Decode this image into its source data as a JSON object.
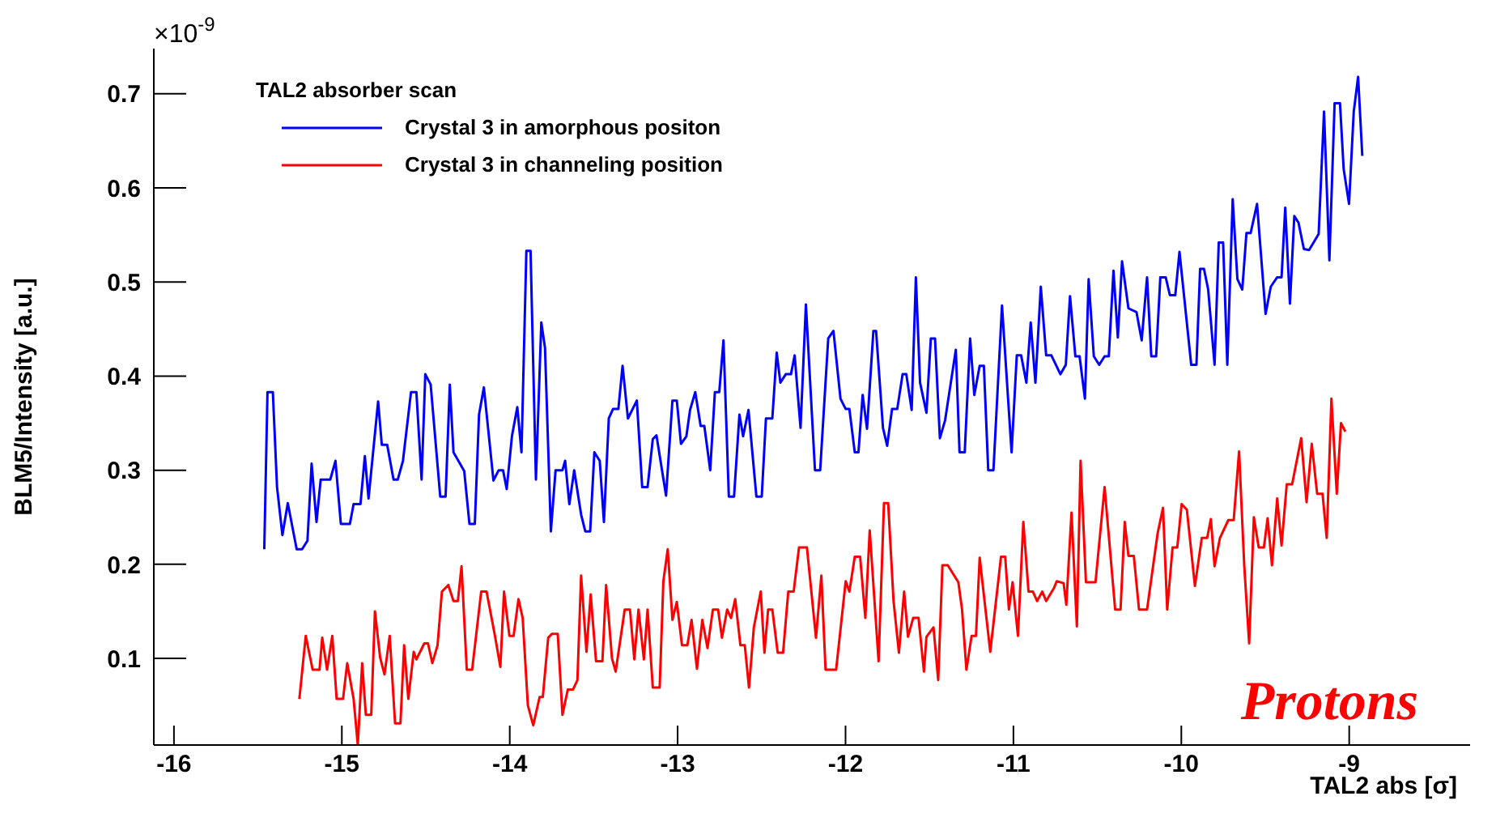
{
  "chart_data": {
    "type": "line",
    "xlabel": "TAL2 abs [σ]",
    "ylabel": "BLM5/Intensity [a.u.]",
    "legend_title": "TAL2 absorber scan",
    "legend": "top left",
    "grid": false,
    "marker": "none",
    "line_style": "solid",
    "xlim": [
      -16.12,
      -8.28
    ],
    "xticks": [
      -16,
      -15,
      -14,
      -13,
      -12,
      -11,
      -10,
      -9
    ],
    "ylim": [
      0.008,
      0.748
    ],
    "yticks": [
      0.1,
      0.2,
      0.3,
      0.4,
      0.5,
      0.6,
      0.7
    ],
    "annotations": [
      "×10$^{-9}$",
      "Protons"
    ],
    "series": [
      {
        "name": "Crystal 3 in amorphous positon",
        "color": "#0000ff",
        "x": [
          -15.462,
          -15.443,
          -15.411,
          -15.386,
          -15.354,
          -15.322,
          -15.269,
          -15.237,
          -15.205,
          -15.18,
          -15.151,
          -15.126,
          -15.069,
          -15.038,
          -15.006,
          -14.952,
          -14.93,
          -14.889,
          -14.863,
          -14.841,
          -14.784,
          -14.762,
          -14.73,
          -14.692,
          -14.667,
          -14.636,
          -14.588,
          -14.556,
          -14.525,
          -14.503,
          -14.471,
          -14.414,
          -14.382,
          -14.357,
          -14.335,
          -14.271,
          -14.24,
          -14.208,
          -14.183,
          -14.154,
          -14.097,
          -14.066,
          -14.04,
          -14.018,
          -13.987,
          -13.955,
          -13.93,
          -13.901,
          -13.876,
          -13.844,
          -13.812,
          -13.79,
          -13.755,
          -13.727,
          -13.686,
          -13.67,
          -13.645,
          -13.616,
          -13.575,
          -13.55,
          -13.521,
          -13.496,
          -13.464,
          -13.439,
          -13.41,
          -13.385,
          -13.353,
          -13.328,
          -13.296,
          -13.243,
          -13.211,
          -13.179,
          -13.148,
          -13.126,
          -13.069,
          -13.031,
          -13.005,
          -12.98,
          -12.948,
          -12.926,
          -12.895,
          -12.863,
          -12.841,
          -12.806,
          -12.778,
          -12.752,
          -12.727,
          -12.695,
          -12.664,
          -12.632,
          -12.61,
          -12.578,
          -12.531,
          -12.499,
          -12.474,
          -12.436,
          -12.41,
          -12.388,
          -12.356,
          -12.325,
          -12.303,
          -12.268,
          -12.236,
          -12.182,
          -12.151,
          -12.103,
          -12.072,
          -12.03,
          -11.999,
          -11.977,
          -11.945,
          -11.923,
          -11.898,
          -11.872,
          -11.834,
          -11.818,
          -11.777,
          -11.752,
          -11.723,
          -11.692,
          -11.66,
          -11.638,
          -11.606,
          -11.581,
          -11.556,
          -11.518,
          -11.492,
          -11.467,
          -11.438,
          -11.407,
          -11.343,
          -11.321,
          -11.29,
          -11.258,
          -11.233,
          -11.201,
          -11.176,
          -11.15,
          -11.119,
          -11.068,
          -11.011,
          -10.98,
          -10.954,
          -10.923,
          -10.897,
          -10.869,
          -10.837,
          -10.805,
          -10.774,
          -10.72,
          -10.688,
          -10.663,
          -10.631,
          -10.606,
          -10.574,
          -10.552,
          -10.521,
          -10.489,
          -10.457,
          -10.432,
          -10.404,
          -10.378,
          -10.353,
          -10.315,
          -10.267,
          -10.236,
          -10.204,
          -10.179,
          -10.15,
          -10.125,
          -10.093,
          -10.068,
          -10.036,
          -10.011,
          -9.941,
          -9.91,
          -9.888,
          -9.865,
          -9.84,
          -9.802,
          -9.777,
          -9.751,
          -9.726,
          -9.694,
          -9.666,
          -9.637,
          -9.612,
          -9.587,
          -9.549,
          -9.498,
          -9.467,
          -9.429,
          -9.403,
          -9.381,
          -9.353,
          -9.327,
          -9.302,
          -9.27,
          -9.239,
          -9.182,
          -9.15,
          -9.118,
          -9.087,
          -9.055,
          -9.033,
          -9.001,
          -8.973,
          -8.947,
          -8.922
        ],
        "values": [
          0.216,
          0.383,
          0.383,
          0.282,
          0.231,
          0.265,
          0.216,
          0.216,
          0.225,
          0.307,
          0.245,
          0.29,
          0.29,
          0.31,
          0.243,
          0.243,
          0.264,
          0.264,
          0.315,
          0.27,
          0.373,
          0.327,
          0.327,
          0.29,
          0.29,
          0.31,
          0.383,
          0.383,
          0.29,
          0.402,
          0.391,
          0.272,
          0.272,
          0.391,
          0.319,
          0.299,
          0.243,
          0.243,
          0.359,
          0.388,
          0.289,
          0.3,
          0.3,
          0.28,
          0.336,
          0.367,
          0.319,
          0.533,
          0.533,
          0.29,
          0.457,
          0.43,
          0.235,
          0.3,
          0.3,
          0.31,
          0.264,
          0.3,
          0.253,
          0.235,
          0.235,
          0.319,
          0.31,
          0.245,
          0.355,
          0.365,
          0.365,
          0.411,
          0.355,
          0.374,
          0.282,
          0.282,
          0.333,
          0.337,
          0.273,
          0.374,
          0.374,
          0.328,
          0.336,
          0.364,
          0.383,
          0.347,
          0.347,
          0.3,
          0.383,
          0.383,
          0.438,
          0.272,
          0.272,
          0.359,
          0.336,
          0.364,
          0.272,
          0.272,
          0.355,
          0.355,
          0.425,
          0.393,
          0.402,
          0.402,
          0.422,
          0.345,
          0.476,
          0.3,
          0.3,
          0.44,
          0.448,
          0.376,
          0.365,
          0.365,
          0.319,
          0.319,
          0.38,
          0.344,
          0.448,
          0.448,
          0.345,
          0.326,
          0.365,
          0.365,
          0.402,
          0.402,
          0.364,
          0.505,
          0.393,
          0.361,
          0.44,
          0.44,
          0.334,
          0.353,
          0.428,
          0.319,
          0.319,
          0.44,
          0.38,
          0.411,
          0.411,
          0.3,
          0.3,
          0.475,
          0.319,
          0.422,
          0.422,
          0.393,
          0.457,
          0.393,
          0.495,
          0.422,
          0.422,
          0.402,
          0.412,
          0.485,
          0.421,
          0.421,
          0.376,
          0.503,
          0.421,
          0.412,
          0.421,
          0.421,
          0.512,
          0.441,
          0.522,
          0.472,
          0.468,
          0.438,
          0.505,
          0.421,
          0.421,
          0.505,
          0.505,
          0.486,
          0.486,
          0.532,
          0.412,
          0.412,
          0.514,
          0.514,
          0.492,
          0.412,
          0.542,
          0.542,
          0.412,
          0.588,
          0.503,
          0.492,
          0.552,
          0.552,
          0.583,
          0.466,
          0.495,
          0.505,
          0.505,
          0.579,
          0.477,
          0.57,
          0.563,
          0.535,
          0.534,
          0.551,
          0.681,
          0.523,
          0.69,
          0.69,
          0.62,
          0.583,
          0.681,
          0.718,
          0.634
        ]
      },
      {
        "name": "Crystal 3 in channeling position",
        "color": "#ff0000",
        "x": [
          -15.253,
          -15.215,
          -15.174,
          -15.133,
          -15.117,
          -15.088,
          -15.057,
          -15.031,
          -14.993,
          -14.968,
          -14.93,
          -14.905,
          -14.879,
          -14.857,
          -14.825,
          -14.803,
          -14.772,
          -14.746,
          -14.715,
          -14.683,
          -14.651,
          -14.629,
          -14.604,
          -14.572,
          -14.556,
          -14.509,
          -14.487,
          -14.461,
          -14.43,
          -14.404,
          -14.366,
          -14.335,
          -14.309,
          -14.287,
          -14.256,
          -14.224,
          -14.17,
          -14.138,
          -14.088,
          -14.056,
          -14.034,
          -14.002,
          -13.977,
          -13.948,
          -13.923,
          -13.892,
          -13.86,
          -13.822,
          -13.803,
          -13.771,
          -13.749,
          -13.714,
          -13.686,
          -13.654,
          -13.623,
          -13.597,
          -13.575,
          -13.543,
          -13.518,
          -13.486,
          -13.448,
          -13.426,
          -13.391,
          -13.369,
          -13.315,
          -13.284,
          -13.258,
          -13.233,
          -13.201,
          -13.179,
          -13.148,
          -13.107,
          -13.085,
          -13.059,
          -13.031,
          -13.005,
          -12.974,
          -12.942,
          -12.917,
          -12.885,
          -12.853,
          -12.822,
          -12.79,
          -12.759,
          -12.736,
          -12.705,
          -12.682,
          -12.657,
          -12.626,
          -12.6,
          -12.575,
          -12.546,
          -12.505,
          -12.483,
          -12.461,
          -12.436,
          -12.404,
          -12.372,
          -12.341,
          -12.309,
          -12.277,
          -12.23,
          -12.176,
          -12.144,
          -12.119,
          -12.056,
          -11.999,
          -11.977,
          -11.945,
          -11.913,
          -11.882,
          -11.856,
          -11.803,
          -11.771,
          -11.746,
          -11.714,
          -11.682,
          -11.651,
          -11.628,
          -11.597,
          -11.565,
          -11.533,
          -11.518,
          -11.476,
          -11.448,
          -11.423,
          -11.391,
          -11.328,
          -11.306,
          -11.28,
          -11.249,
          -11.223,
          -11.201,
          -11.138,
          -11.074,
          -11.049,
          -11.027,
          -11.005,
          -10.973,
          -10.941,
          -10.91,
          -10.884,
          -10.859,
          -10.828,
          -10.805,
          -10.758,
          -10.742,
          -10.701,
          -10.685,
          -10.654,
          -10.622,
          -10.6,
          -10.568,
          -10.511,
          -10.457,
          -10.394,
          -10.362,
          -10.337,
          -10.315,
          -10.283,
          -10.252,
          -10.204,
          -10.141,
          -10.109,
          -10.084,
          -10.052,
          -10.024,
          -9.998,
          -9.967,
          -9.919,
          -9.878,
          -9.846,
          -9.824,
          -9.802,
          -9.77,
          -9.72,
          -9.688,
          -9.656,
          -9.625,
          -9.596,
          -9.568,
          -9.539,
          -9.508,
          -9.486,
          -9.46,
          -9.429,
          -9.403,
          -9.372,
          -9.34,
          -9.286,
          -9.254,
          -9.223,
          -9.191,
          -9.159,
          -9.134,
          -9.106,
          -9.074,
          -9.049,
          -9.023
        ],
        "values": [
          0.057,
          0.124,
          0.088,
          0.088,
          0.122,
          0.088,
          0.124,
          0.057,
          0.057,
          0.095,
          0.057,
          0.008,
          0.095,
          0.04,
          0.04,
          0.15,
          0.101,
          0.083,
          0.124,
          0.031,
          0.031,
          0.114,
          0.057,
          0.107,
          0.099,
          0.116,
          0.116,
          0.095,
          0.114,
          0.171,
          0.178,
          0.161,
          0.161,
          0.198,
          0.088,
          0.088,
          0.171,
          0.171,
          0.124,
          0.091,
          0.171,
          0.124,
          0.124,
          0.163,
          0.143,
          0.05,
          0.029,
          0.059,
          0.059,
          0.122,
          0.126,
          0.126,
          0.04,
          0.067,
          0.067,
          0.077,
          0.188,
          0.107,
          0.168,
          0.097,
          0.097,
          0.178,
          0.1,
          0.086,
          0.152,
          0.152,
          0.099,
          0.152,
          0.099,
          0.152,
          0.069,
          0.069,
          0.182,
          0.216,
          0.141,
          0.16,
          0.114,
          0.114,
          0.141,
          0.089,
          0.141,
          0.111,
          0.152,
          0.152,
          0.122,
          0.152,
          0.143,
          0.163,
          0.114,
          0.114,
          0.069,
          0.133,
          0.171,
          0.106,
          0.152,
          0.152,
          0.106,
          0.106,
          0.171,
          0.171,
          0.218,
          0.218,
          0.122,
          0.188,
          0.088,
          0.088,
          0.182,
          0.171,
          0.208,
          0.208,
          0.143,
          0.236,
          0.097,
          0.265,
          0.265,
          0.161,
          0.106,
          0.171,
          0.123,
          0.143,
          0.143,
          0.086,
          0.123,
          0.133,
          0.077,
          0.199,
          0.199,
          0.181,
          0.152,
          0.088,
          0.124,
          0.124,
          0.207,
          0.107,
          0.208,
          0.208,
          0.152,
          0.181,
          0.124,
          0.245,
          0.171,
          0.171,
          0.161,
          0.171,
          0.161,
          0.175,
          0.182,
          0.18,
          0.157,
          0.255,
          0.134,
          0.31,
          0.181,
          0.181,
          0.282,
          0.152,
          0.152,
          0.245,
          0.209,
          0.209,
          0.152,
          0.152,
          0.233,
          0.26,
          0.152,
          0.218,
          0.218,
          0.264,
          0.258,
          0.177,
          0.228,
          0.228,
          0.248,
          0.198,
          0.228,
          0.247,
          0.247,
          0.32,
          0.198,
          0.116,
          0.25,
          0.218,
          0.218,
          0.249,
          0.199,
          0.27,
          0.22,
          0.285,
          0.285,
          0.334,
          0.266,
          0.328,
          0.275,
          0.275,
          0.228,
          0.376,
          0.275,
          0.35,
          0.341
        ]
      }
    ]
  }
}
